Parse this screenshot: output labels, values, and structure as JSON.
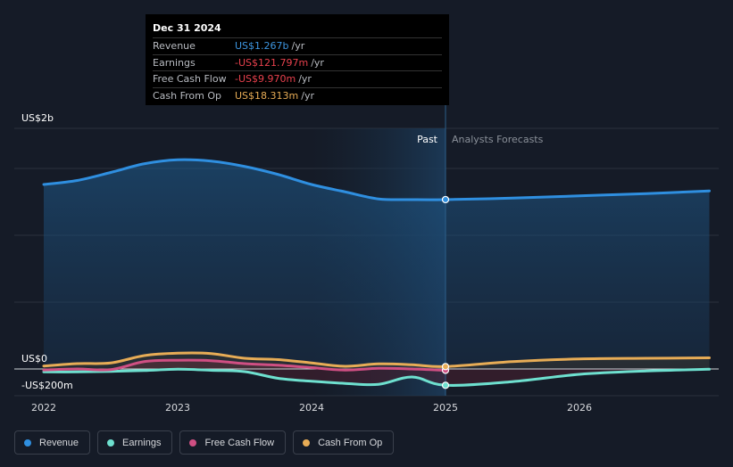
{
  "tooltip": {
    "date": "Dec 31 2024",
    "rows": [
      {
        "label": "Revenue",
        "value": "US$1.267b",
        "unit": "/yr",
        "color": "#3d95e0"
      },
      {
        "label": "Earnings",
        "value": "-US$121.797m",
        "unit": "/yr",
        "color": "#e8414d"
      },
      {
        "label": "Free Cash Flow",
        "value": "-US$9.970m",
        "unit": "/yr",
        "color": "#e8414d"
      },
      {
        "label": "Cash From Op",
        "value": "US$18.313m",
        "unit": "/yr",
        "color": "#e7ac56"
      }
    ]
  },
  "legend": [
    {
      "label": "Revenue",
      "color": "#2f8fe0"
    },
    {
      "label": "Earnings",
      "color": "#6ee0cf"
    },
    {
      "label": "Free Cash Flow",
      "color": "#cf4f83"
    },
    {
      "label": "Cash From Op",
      "color": "#e7ac56"
    }
  ],
  "chart_data": {
    "type": "line",
    "y_labels": {
      "top": "US$2b",
      "zero": "US$0",
      "bottom": "-US$200m"
    },
    "ylim": [
      -200,
      1800
    ],
    "unit": "US$m",
    "xlim": [
      2021.8,
      2027.0
    ],
    "x_ticks": [
      2022,
      2023,
      2024,
      2025,
      2026
    ],
    "past_label": "Past",
    "forecast_label": "Analysts Forecasts",
    "divider_x": 2025.0,
    "shaded_start_x": 2024.0,
    "highlight_x": 2025.0,
    "series": [
      {
        "name": "Revenue",
        "color": "#2f8fe0",
        "x": [
          2022.0,
          2022.25,
          2022.5,
          2022.75,
          2023.0,
          2023.25,
          2023.5,
          2023.75,
          2024.0,
          2024.25,
          2024.5,
          2024.75,
          2025.0,
          2025.5,
          2026.0,
          2026.5,
          2027.0
        ],
        "y": [
          1380,
          1410,
          1470,
          1535,
          1565,
          1555,
          1515,
          1455,
          1380,
          1325,
          1272,
          1267,
          1267,
          1278,
          1295,
          1312,
          1332
        ]
      },
      {
        "name": "Earnings",
        "color": "#6ee0cf",
        "x": [
          2022.0,
          2022.25,
          2022.5,
          2022.75,
          2023.0,
          2023.25,
          2023.5,
          2023.75,
          2024.0,
          2024.25,
          2024.5,
          2024.75,
          2025.0,
          2025.5,
          2026.0,
          2026.5,
          2027.0
        ],
        "y": [
          -22,
          -22,
          -18,
          -12,
          -2,
          -10,
          -20,
          -70,
          -92,
          -108,
          -115,
          -60,
          -122,
          -95,
          -40,
          -15,
          -2
        ]
      },
      {
        "name": "Free Cash Flow",
        "color": "#cf4f83",
        "x": [
          2022.0,
          2022.25,
          2022.5,
          2022.75,
          2023.0,
          2023.25,
          2023.5,
          2023.75,
          2024.0,
          2024.25,
          2024.5,
          2024.75,
          2025.0
        ],
        "y": [
          -8,
          0,
          -5,
          55,
          65,
          62,
          40,
          28,
          10,
          -8,
          5,
          0,
          -10
        ]
      },
      {
        "name": "Cash From Op",
        "color": "#e7ac56",
        "x": [
          2022.0,
          2022.25,
          2022.5,
          2022.75,
          2023.0,
          2023.25,
          2023.5,
          2023.75,
          2024.0,
          2024.25,
          2024.5,
          2024.75,
          2025.0,
          2025.5,
          2026.0,
          2026.5,
          2027.0
        ],
        "y": [
          22,
          40,
          45,
          100,
          118,
          115,
          80,
          70,
          45,
          20,
          38,
          32,
          18,
          55,
          75,
          80,
          83
        ]
      }
    ]
  }
}
